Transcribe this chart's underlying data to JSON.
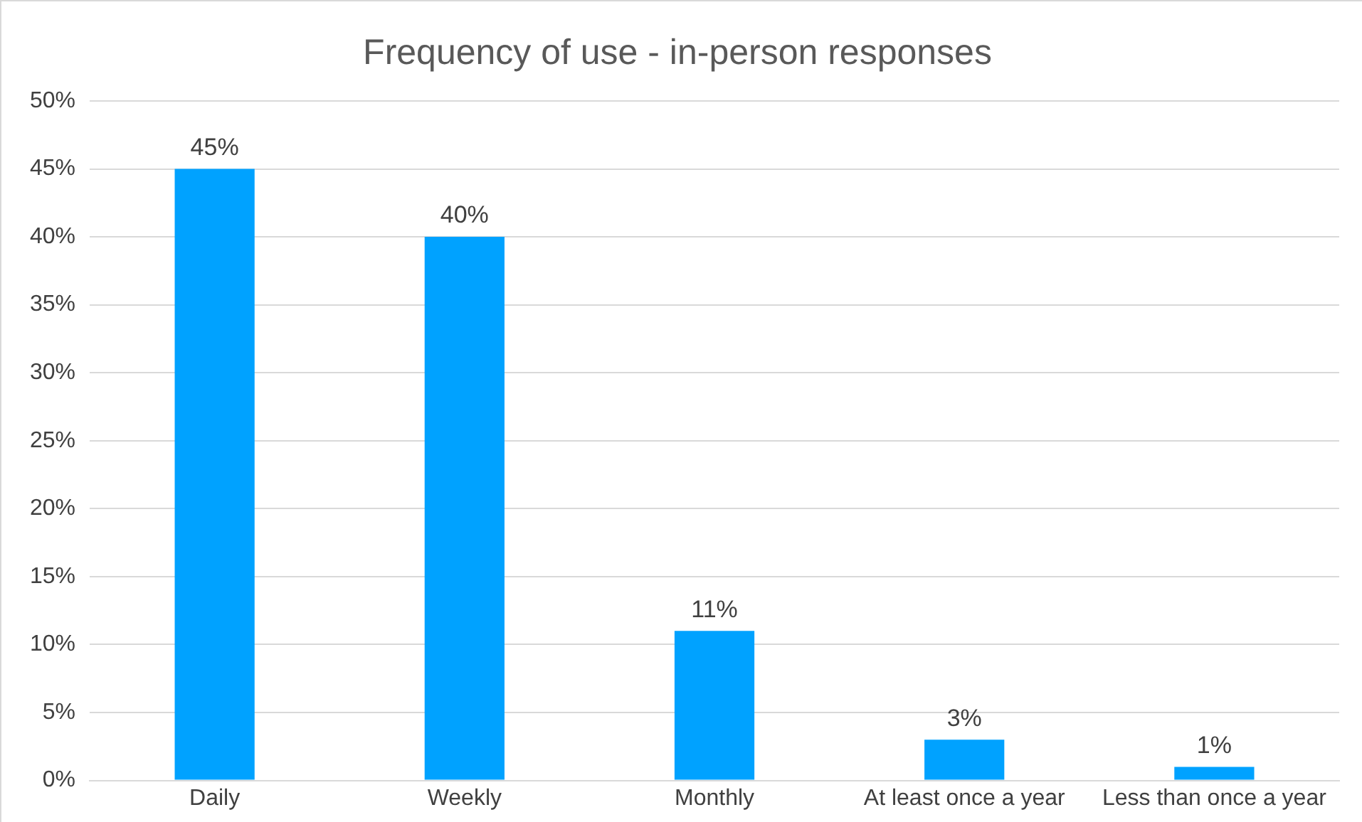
{
  "chart_data": {
    "type": "bar",
    "title": "Frequency of use - in-person responses",
    "categories": [
      "Daily",
      "Weekly",
      "Monthly",
      "At least once a year",
      "Less than once a year"
    ],
    "values": [
      45,
      40,
      11,
      3,
      1
    ],
    "value_labels": [
      "45%",
      "40%",
      "11%",
      "3%",
      "1%"
    ],
    "color": "#00a2ff",
    "ylim": [
      0,
      50
    ],
    "yticks": [
      {
        "value": 0,
        "label": "0%"
      },
      {
        "value": 5,
        "label": "5%"
      },
      {
        "value": 10,
        "label": "10%"
      },
      {
        "value": 15,
        "label": "15%"
      },
      {
        "value": 20,
        "label": "20%"
      },
      {
        "value": 25,
        "label": "25%"
      },
      {
        "value": 30,
        "label": "30%"
      },
      {
        "value": 35,
        "label": "35%"
      },
      {
        "value": 40,
        "label": "40%"
      },
      {
        "value": 45,
        "label": "45%"
      },
      {
        "value": 50,
        "label": "50%"
      }
    ],
    "grid": "y",
    "legend": false
  }
}
